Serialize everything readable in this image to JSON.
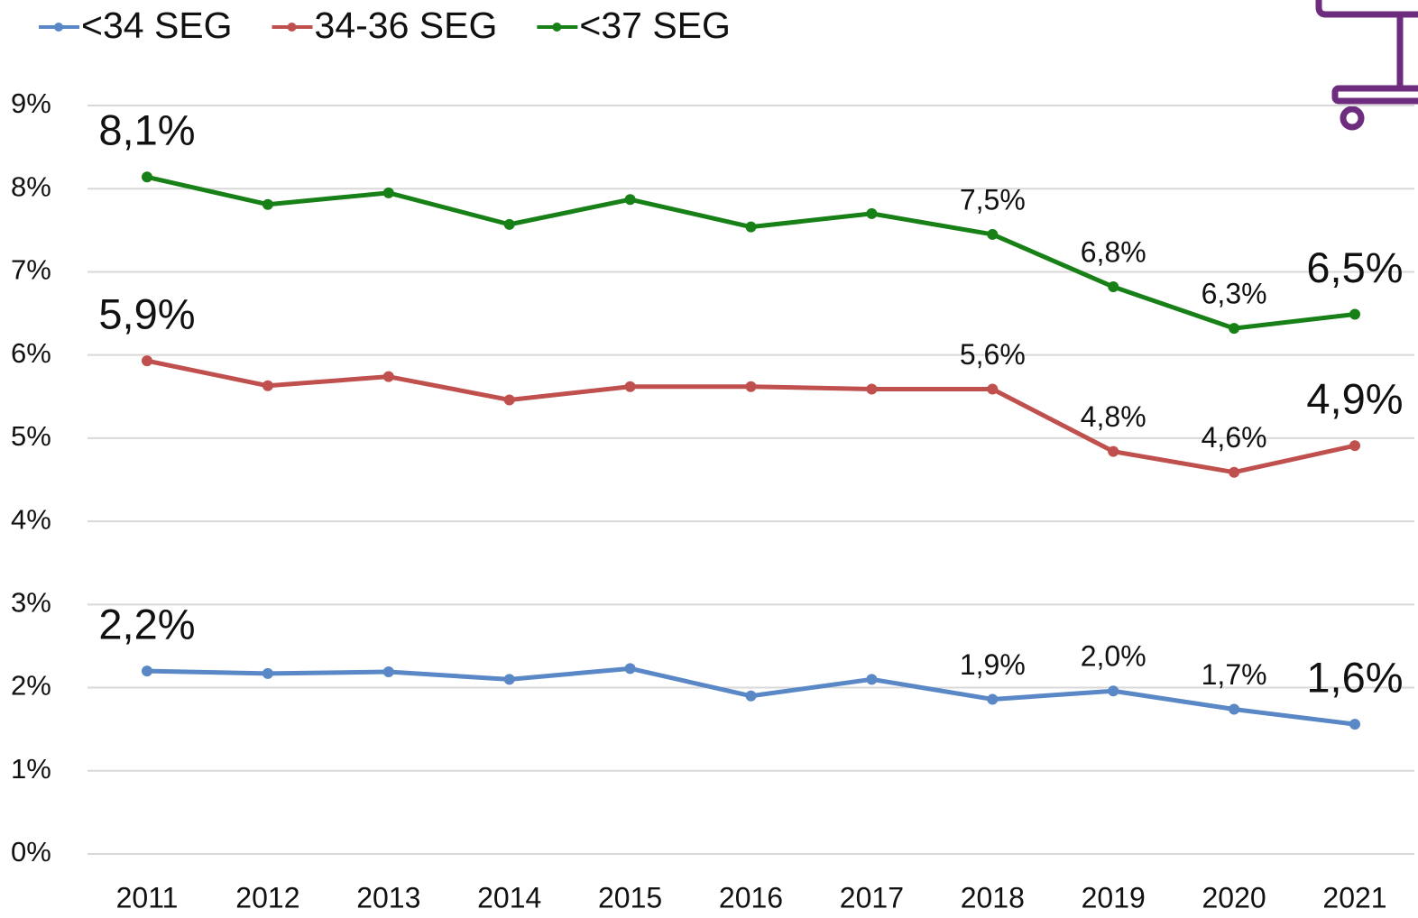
{
  "chart_data": {
    "type": "line",
    "categories": [
      "2011",
      "2012",
      "2013",
      "2014",
      "2015",
      "2016",
      "2017",
      "2018",
      "2019",
      "2020",
      "2021"
    ],
    "series": [
      {
        "name": "<34 SEG",
        "color": "#5a87c6",
        "values": [
          2.2,
          2.17,
          2.19,
          2.1,
          2.23,
          1.9,
          2.1,
          1.86,
          1.96,
          1.74,
          1.56
        ],
        "value_labels": [
          "2,2%",
          null,
          null,
          null,
          null,
          null,
          null,
          "1,9%",
          "2,0%",
          "1,7%",
          "1,6%"
        ]
      },
      {
        "name": "34-36 SEG",
        "color": "#c0504d",
        "values": [
          5.93,
          5.63,
          5.74,
          5.46,
          5.62,
          5.62,
          5.59,
          5.59,
          4.84,
          4.59,
          4.91
        ],
        "value_labels": [
          "5,9%",
          null,
          null,
          null,
          null,
          null,
          null,
          "5,6%",
          "4,8%",
          "4,6%",
          "4,9%"
        ]
      },
      {
        "name": "<37 SEG",
        "color": "#178017",
        "values": [
          8.14,
          7.81,
          7.95,
          7.57,
          7.87,
          7.54,
          7.7,
          7.45,
          6.82,
          6.32,
          6.49
        ],
        "value_labels": [
          "8,1%",
          null,
          null,
          null,
          null,
          null,
          null,
          "7,5%",
          "6,8%",
          "6,3%",
          "6,5%"
        ]
      }
    ],
    "ylim": [
      0,
      9
    ],
    "yticks": [
      {
        "value": 0,
        "label": "0%"
      },
      {
        "value": 1,
        "label": "1%"
      },
      {
        "value": 2,
        "label": "2%"
      },
      {
        "value": 3,
        "label": "3%"
      },
      {
        "value": 4,
        "label": "4%"
      },
      {
        "value": 5,
        "label": "5%"
      },
      {
        "value": 6,
        "label": "6%"
      },
      {
        "value": 7,
        "label": "7%"
      },
      {
        "value": 8,
        "label": "8%"
      },
      {
        "value": 9,
        "label": "9%"
      }
    ],
    "grid": true,
    "legend": "top"
  }
}
